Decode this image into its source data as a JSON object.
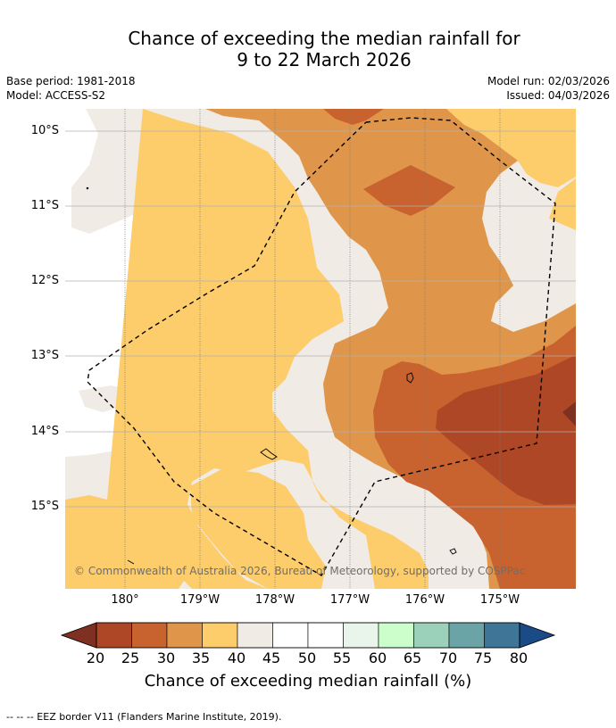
{
  "title": {
    "line1": "Chance of exceeding the median rainfall for",
    "line2": "9 to 22 March 2026"
  },
  "meta": {
    "base_period": "Base period: 1981-2018",
    "model": "Model: ACCESS-S2",
    "model_run": "Model run: 02/03/2026",
    "issued": "Issued: 04/03/2026"
  },
  "axes": {
    "lat_labels": [
      "10°S",
      "11°S",
      "12°S",
      "13°S",
      "14°S",
      "15°S"
    ],
    "lon_labels": [
      "180°",
      "179°W",
      "178°W",
      "177°W",
      "176°W",
      "175°W"
    ]
  },
  "map": {
    "credit": "© Commonwealth of Australia 2026, Bureau of Meteorology, supported by COSPPac",
    "colors": {
      "c20_25": "#ad4726",
      "c25_30": "#c8622f",
      "c30_35": "#e0964a",
      "c35_40": "#fdcc6b",
      "c40_45": "#f0ebe5",
      "c45_55": "#ffffff"
    }
  },
  "colorbar": {
    "labels": [
      "20",
      "25",
      "30",
      "35",
      "40",
      "45",
      "50",
      "55",
      "60",
      "65",
      "70",
      "75",
      "80"
    ],
    "title": "Chance of exceeding median rainfall (%)",
    "colors": [
      "#7f3121",
      "#ad4726",
      "#c8622f",
      "#e0964a",
      "#fdcc6b",
      "#f0ebe5",
      "#ffffff",
      "#ffffff",
      "#e9f4ea",
      "#ccfecc",
      "#9bd1bb",
      "#6aa4a7",
      "#3f7597",
      "#1a4b87"
    ]
  },
  "footnote": "--  --  -- EEZ border V11 (Flanders Marine Institute, 2019)."
}
